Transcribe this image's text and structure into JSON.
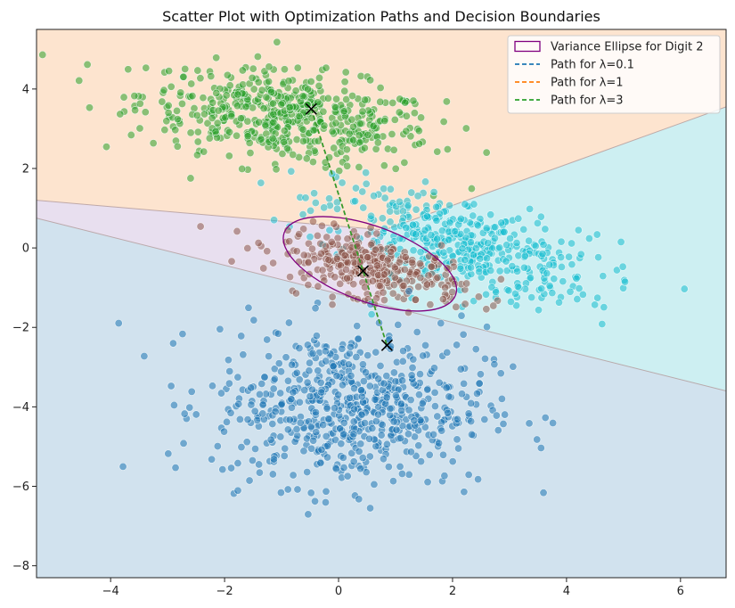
{
  "chart_data": {
    "type": "scatter",
    "title": "Scatter Plot with Optimization Paths and Decision Boundaries",
    "xlabel": "",
    "ylabel": "",
    "xlim": [
      -5.3,
      6.8
    ],
    "ylim": [
      -8.3,
      5.5
    ],
    "x_ticks": [
      -4,
      -2,
      0,
      2,
      4,
      6
    ],
    "y_ticks": [
      -8,
      -6,
      -4,
      -2,
      0,
      2,
      4
    ],
    "x_tick_labels": [
      "−4",
      "−2",
      "0",
      "2",
      "4",
      "6"
    ],
    "y_tick_labels": [
      "−8",
      "−6",
      "−4",
      "−2",
      "0",
      "2",
      "4"
    ],
    "grid": false,
    "legend_position": "top-right",
    "regions": [
      {
        "class": "green-cluster",
        "color": "#fde4cf"
      },
      {
        "class": "cyan-cluster",
        "color": "#cdeff2"
      },
      {
        "class": "brown-cluster",
        "color": "#e8dfef"
      },
      {
        "class": "blue-cluster",
        "color": "#d1e2ee"
      }
    ],
    "boundaries": [
      {
        "from": [
          -5.3,
          0.75
        ],
        "to": [
          6.8,
          -3.6
        ]
      },
      {
        "from": [
          -5.3,
          1.2
        ],
        "to": [
          0.8,
          0.45
        ]
      },
      {
        "from": [
          0.8,
          0.45
        ],
        "to": [
          6.8,
          3.55
        ]
      }
    ],
    "clusters": [
      {
        "label": "green",
        "color": "#2ca02c",
        "center": [
          -0.9,
          3.3
        ],
        "spread": [
          1.3,
          0.55
        ],
        "rotation_deg": -12,
        "count": 520
      },
      {
        "label": "cyan",
        "color": "#17becf",
        "center": [
          2.1,
          0.1
        ],
        "spread": [
          1.3,
          0.55
        ],
        "rotation_deg": -22,
        "count": 430
      },
      {
        "label": "brown",
        "color": "#8c564b",
        "center": [
          0.6,
          -0.5
        ],
        "spread": [
          0.85,
          0.35
        ],
        "rotation_deg": -18,
        "count": 330
      },
      {
        "label": "blue",
        "color": "#1f77b4",
        "center": [
          0.2,
          -4.0
        ],
        "spread": [
          1.2,
          1.0
        ],
        "rotation_deg": 0,
        "count": 650
      }
    ],
    "ellipse": {
      "name": "Variance Ellipse for Digit 2",
      "center": [
        0.55,
        -0.4
      ],
      "rx": 1.6,
      "ry": 0.95,
      "rotation_deg": -20,
      "color": "#800080"
    },
    "paths": [
      {
        "name": "Path for λ=0.1",
        "color": "#1f77b4",
        "points": [
          [
            -0.48,
            3.5
          ],
          [
            0.43,
            -0.58
          ],
          [
            0.85,
            -2.45
          ]
        ]
      },
      {
        "name": "Path for λ=1",
        "color": "#ff7f0e",
        "points": [
          [
            -0.48,
            3.5
          ],
          [
            0.43,
            -0.58
          ],
          [
            0.85,
            -2.45
          ]
        ]
      },
      {
        "name": "Path for λ=3",
        "color": "#2ca02c",
        "points": [
          [
            -0.48,
            3.5
          ],
          [
            0.43,
            -0.58
          ],
          [
            0.85,
            -2.45
          ]
        ]
      }
    ],
    "markers": [
      [
        -0.48,
        3.5
      ],
      [
        0.43,
        -0.58
      ],
      [
        0.85,
        -2.45
      ]
    ]
  }
}
